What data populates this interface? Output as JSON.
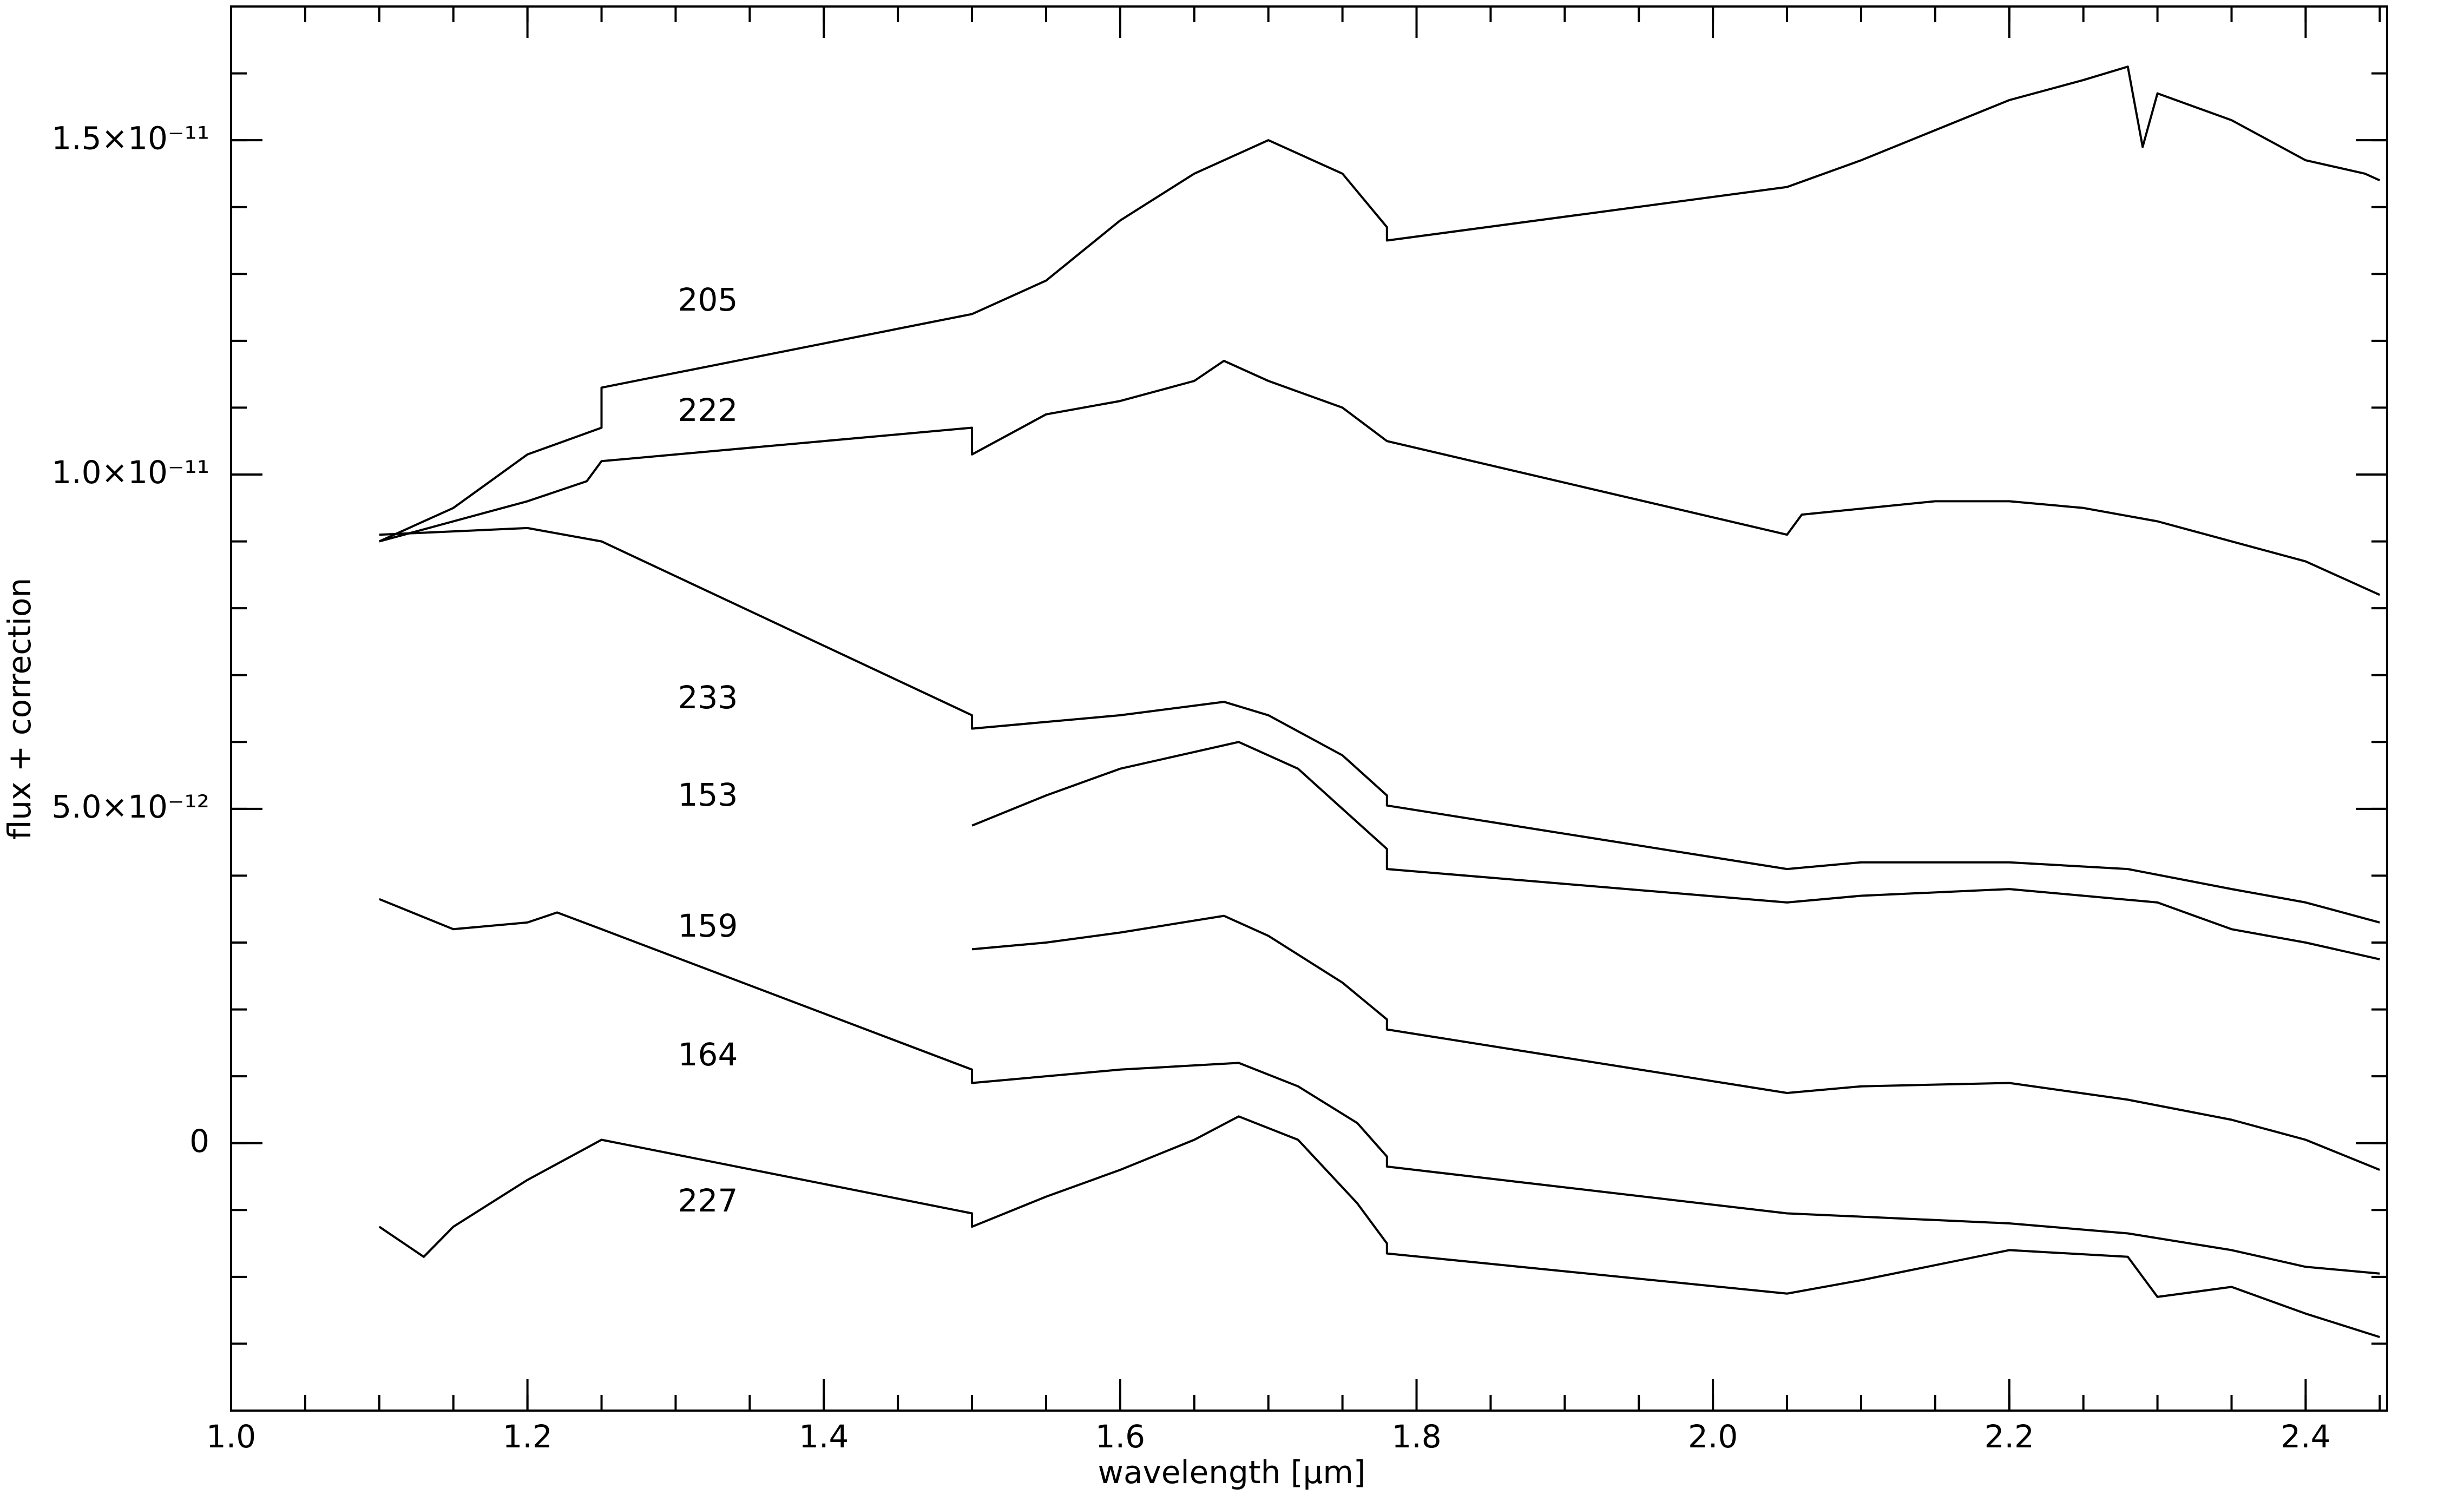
{
  "chart_data": {
    "type": "line",
    "xlabel": "wavelength [μm]",
    "ylabel": "flux + correction",
    "color": "#000000",
    "xlim": [
      1.0,
      2.455
    ],
    "ylim": [
      -4e-12,
      1.7e-11
    ],
    "xticks": [
      {
        "value": 1.0,
        "label": "1.0"
      },
      1.2,
      1.4,
      1.6,
      1.8,
      {
        "value": 2.0,
        "label": "2.0"
      },
      2.2,
      2.4
    ],
    "yticks": [
      0,
      {
        "value": 5e-12,
        "label": "5.0×10⁻¹²"
      },
      {
        "value": 1e-11,
        "label": "1.0×10⁻¹¹"
      },
      {
        "value": 1.5e-11,
        "label": "1.5×10⁻¹¹"
      }
    ],
    "annotations": [
      "205",
      "222",
      "233",
      "153",
      "159",
      "164",
      "227"
    ],
    "series": [
      {
        "x": [
          1.1,
          1.15,
          1.2,
          1.25,
          1.25,
          1.5,
          1.55,
          1.6,
          1.65,
          1.7,
          1.75,
          1.78,
          1.78,
          2.05,
          2.1,
          2.2,
          2.25,
          2.28,
          2.29,
          2.3,
          2.35,
          2.4,
          2.44,
          2.45
        ],
        "values": [
          9e-12,
          9.5e-12,
          1.03e-11,
          1.07e-11,
          1.13e-11,
          1.24e-11,
          1.29e-11,
          1.38e-11,
          1.45e-11,
          1.5e-11,
          1.45e-11,
          1.37e-11,
          1.35e-11,
          1.43e-11,
          1.47e-11,
          1.56e-11,
          1.59e-11,
          1.61e-11,
          1.49e-11,
          1.57e-11,
          1.53e-11,
          1.47e-11,
          1.45e-11,
          1.44e-11
        ]
      },
      {
        "x": [
          1.1,
          1.2,
          1.24,
          1.25,
          1.5,
          1.5,
          1.55,
          1.6,
          1.65,
          1.67,
          1.7,
          1.75,
          1.78,
          2.05,
          2.06,
          2.15,
          2.2,
          2.25,
          2.3,
          2.35,
          2.4,
          2.45
        ],
        "values": [
          9e-12,
          9.6e-12,
          9.9e-12,
          1.02e-11,
          1.07e-11,
          1.03e-11,
          1.09e-11,
          1.11e-11,
          1.14e-11,
          1.17e-11,
          1.14e-11,
          1.1e-11,
          1.05e-11,
          9.1e-12,
          9.4e-12,
          9.6e-12,
          9.6e-12,
          9.5e-12,
          9.3e-12,
          9e-12,
          8.7e-12,
          8.2e-12
        ]
      },
      {
        "x": [
          1.1,
          1.2,
          1.25,
          1.5,
          1.5,
          1.6,
          1.67,
          1.7,
          1.75,
          1.78,
          1.78,
          2.05,
          2.1,
          2.2,
          2.28,
          2.35,
          2.4,
          2.45
        ],
        "values": [
          9.1e-12,
          9.2e-12,
          9e-12,
          6.4e-12,
          6.2e-12,
          6.4e-12,
          6.6e-12,
          6.4e-12,
          5.8e-12,
          5.2e-12,
          5.05e-12,
          4.1e-12,
          4.2e-12,
          4.2e-12,
          4.1e-12,
          3.8e-12,
          3.6e-12,
          3.3e-12
        ]
      },
      {
        "x": [
          1.5,
          1.55,
          1.6,
          1.65,
          1.68,
          1.72,
          1.75,
          1.78,
          1.78,
          2.05,
          2.1,
          2.2,
          2.3,
          2.35,
          2.4,
          2.45
        ],
        "values": [
          4.75e-12,
          5.2e-12,
          5.6e-12,
          5.85e-12,
          6e-12,
          5.6e-12,
          5e-12,
          4.4e-12,
          4.1e-12,
          3.6e-12,
          3.7e-12,
          3.8e-12,
          3.6e-12,
          3.2e-12,
          3e-12,
          2.75e-12
        ]
      },
      {
        "x": [
          1.5,
          1.55,
          1.6,
          1.67,
          1.7,
          1.75,
          1.78,
          1.78,
          2.05,
          2.1,
          2.2,
          2.28,
          2.35,
          2.4,
          2.45
        ],
        "values": [
          2.9e-12,
          3e-12,
          3.15e-12,
          3.4e-12,
          3.1e-12,
          2.4e-12,
          1.85e-12,
          1.7e-12,
          7.5e-13,
          8.5e-13,
          9e-13,
          6.5e-13,
          3.5e-13,
          5e-14,
          -4e-13
        ]
      },
      {
        "x": [
          1.1,
          1.15,
          1.2,
          1.22,
          1.25,
          1.5,
          1.5,
          1.6,
          1.68,
          1.72,
          1.76,
          1.78,
          1.78,
          2.05,
          2.1,
          2.2,
          2.28,
          2.35,
          2.4,
          2.45
        ],
        "values": [
          3.65e-12,
          3.2e-12,
          3.3e-12,
          3.45e-12,
          3.2e-12,
          1.1e-12,
          9e-13,
          1.1e-12,
          1.2e-12,
          8.5e-13,
          3e-13,
          -2e-13,
          -3.5e-13,
          -1.05e-12,
          -1.1e-12,
          -1.2e-12,
          -1.35e-12,
          -1.6e-12,
          -1.85e-12,
          -1.95e-12
        ]
      },
      {
        "x": [
          1.1,
          1.13,
          1.15,
          1.2,
          1.24,
          1.25,
          1.5,
          1.5,
          1.55,
          1.6,
          1.65,
          1.68,
          1.72,
          1.76,
          1.78,
          1.78,
          2.05,
          2.1,
          2.2,
          2.28,
          2.3,
          2.35,
          2.4,
          2.45
        ],
        "values": [
          -1.25e-12,
          -1.7e-12,
          -1.25e-12,
          -5.5e-13,
          -7e-14,
          5e-14,
          -1.05e-12,
          -1.25e-12,
          -8e-13,
          -4e-13,
          5e-14,
          4e-13,
          5e-14,
          -9e-13,
          -1.5e-12,
          -1.65e-12,
          -2.25e-12,
          -2.05e-12,
          -1.6e-12,
          -1.7e-12,
          -2.3e-12,
          -2.15e-12,
          -2.55e-12,
          -2.9e-12
        ]
      }
    ]
  }
}
